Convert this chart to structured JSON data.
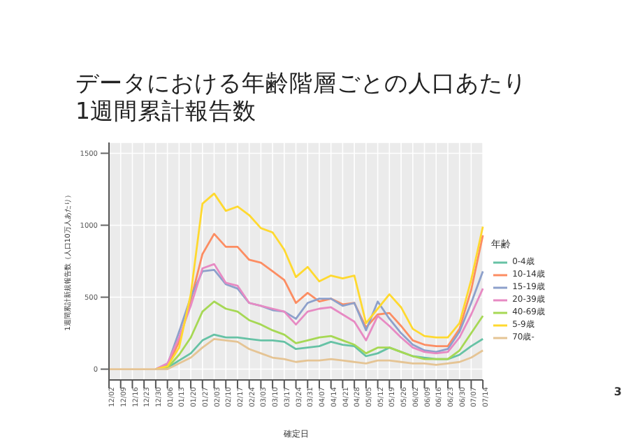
{
  "chart_data": {
    "type": "line",
    "title": "データにおける年齢階層ごとの人口あたり1週間累計報告数",
    "xlabel": "確定日",
    "ylabel": "1週間累計新規報告数（人口10万人あたり）",
    "legend_title": "年齢",
    "categories": [
      "12/02",
      "12/09",
      "12/16",
      "12/23",
      "12/30",
      "01/06",
      "01/13",
      "01/20",
      "01/27",
      "02/03",
      "02/10",
      "02/17",
      "02/24",
      "03/03",
      "03/10",
      "03/17",
      "03/24",
      "03/31",
      "04/07",
      "04/14",
      "04/21",
      "04/28",
      "05/05",
      "05/12",
      "05/19",
      "05/26",
      "06/02",
      "06/09",
      "06/16",
      "06/23",
      "06/30",
      "07/07",
      "07/14"
    ],
    "series": [
      {
        "name": "0-4歳",
        "color": "#66c2a5",
        "values": [
          null,
          null,
          null,
          null,
          0,
          10,
          60,
          110,
          200,
          240,
          220,
          220,
          210,
          200,
          200,
          190,
          140,
          150,
          160,
          190,
          170,
          160,
          90,
          110,
          150,
          120,
          90,
          80,
          70,
          70,
          100,
          160,
          210
        ]
      },
      {
        "name": "10-14歳",
        "color": "#fc8d62",
        "values": [
          null,
          null,
          null,
          null,
          0,
          20,
          190,
          480,
          800,
          940,
          850,
          850,
          760,
          740,
          680,
          620,
          460,
          530,
          470,
          490,
          450,
          460,
          290,
          380,
          390,
          300,
          200,
          170,
          160,
          160,
          280,
          550,
          930
        ]
      },
      {
        "name": "15-19歳",
        "color": "#8da0cb",
        "values": [
          null,
          null,
          null,
          null,
          0,
          30,
          260,
          500,
          680,
          690,
          590,
          560,
          460,
          440,
          410,
          400,
          350,
          460,
          490,
          490,
          440,
          460,
          270,
          470,
          350,
          250,
          170,
          130,
          120,
          140,
          260,
          460,
          680
        ]
      },
      {
        "name": "20-39歳",
        "color": "#e78ac3",
        "values": [
          null,
          null,
          null,
          null,
          0,
          40,
          220,
          440,
          700,
          730,
          600,
          580,
          460,
          440,
          420,
          400,
          310,
          400,
          420,
          430,
          380,
          330,
          200,
          370,
          300,
          220,
          150,
          120,
          110,
          120,
          220,
          380,
          560
        ]
      },
      {
        "name": "40-69歳",
        "color": "#a6d854",
        "values": [
          null,
          null,
          null,
          null,
          0,
          10,
          100,
          220,
          400,
          470,
          420,
          400,
          340,
          310,
          270,
          240,
          180,
          200,
          220,
          230,
          200,
          170,
          110,
          150,
          150,
          120,
          90,
          70,
          70,
          70,
          130,
          250,
          370
        ]
      },
      {
        "name": "5-9歳",
        "color": "#ffd92f",
        "values": [
          null,
          null,
          null,
          null,
          0,
          20,
          150,
          520,
          1150,
          1220,
          1100,
          1130,
          1070,
          980,
          950,
          830,
          640,
          710,
          610,
          650,
          630,
          650,
          320,
          420,
          520,
          430,
          280,
          230,
          220,
          220,
          320,
          620,
          990
        ]
      },
      {
        "name": "70歳-",
        "color": "#e5c494",
        "values": [
          0,
          0,
          0,
          0,
          0,
          0,
          40,
          80,
          150,
          210,
          200,
          190,
          140,
          110,
          80,
          70,
          50,
          60,
          60,
          70,
          60,
          50,
          40,
          60,
          60,
          50,
          40,
          40,
          30,
          40,
          50,
          80,
          130
        ]
      }
    ],
    "ylim": [
      -75,
      1575
    ],
    "yticks": [
      0,
      500,
      1000,
      1500
    ],
    "grid": true,
    "legend": "right",
    "marker": "none",
    "line_style": "solid",
    "annotations": [
      "3"
    ]
  }
}
